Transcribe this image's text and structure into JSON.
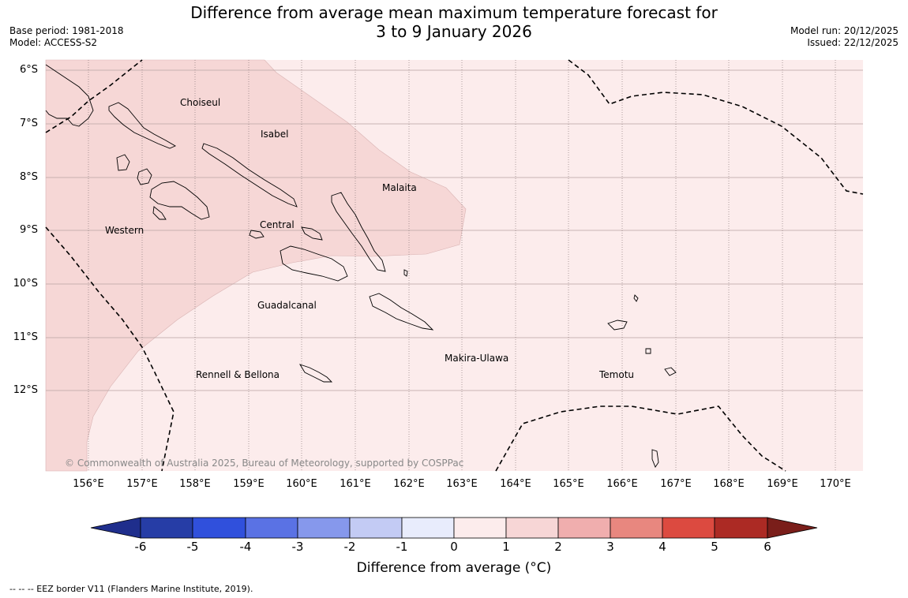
{
  "title": {
    "line1": "Difference from average mean maximum temperature forecast for",
    "line2": "3 to 9 January 2026"
  },
  "meta": {
    "base_period": "Base period: 1981-2018",
    "model": "Model: ACCESS-S2",
    "model_run": "Model run: 20/12/2025",
    "issued": "Issued: 22/12/2025"
  },
  "latitude_labels": [
    "6°S",
    "7°S",
    "8°S",
    "9°S",
    "10°S",
    "11°S",
    "12°S"
  ],
  "longitude_labels": [
    "156°E",
    "157°E",
    "158°E",
    "159°E",
    "160°E",
    "161°E",
    "162°E",
    "163°E",
    "164°E",
    "165°E",
    "166°E",
    "167°E",
    "168°E",
    "169°E",
    "170°E"
  ],
  "regions": [
    "Choiseul",
    "Isabel",
    "Malaita",
    "Western",
    "Central",
    "Guadalcanal",
    "Makira-Ulawa",
    "Rennell & Bellona",
    "Temotu"
  ],
  "copyright": "© Commonwealth of Australia 2025, Bureau of Meteorology, supported by COSPPac",
  "colorbar": {
    "ticks": [
      "-6",
      "-5",
      "-4",
      "-3",
      "-2",
      "-1",
      "0",
      "1",
      "2",
      "3",
      "4",
      "5",
      "6"
    ],
    "colors": [
      "#1f2e8c",
      "#263da6",
      "#3050dc",
      "#5a72e4",
      "#8698ec",
      "#c3cbf4",
      "#e8ecfc",
      "#fcecec",
      "#f7d6d6",
      "#f0aeae",
      "#e8877f",
      "#dc4a40",
      "#ac2a24",
      "#7a1e1a"
    ],
    "label": "Difference from average (°C)"
  },
  "footer": "--  --  -- EEZ border V11 (Flanders Marine Institute, 2019)."
}
